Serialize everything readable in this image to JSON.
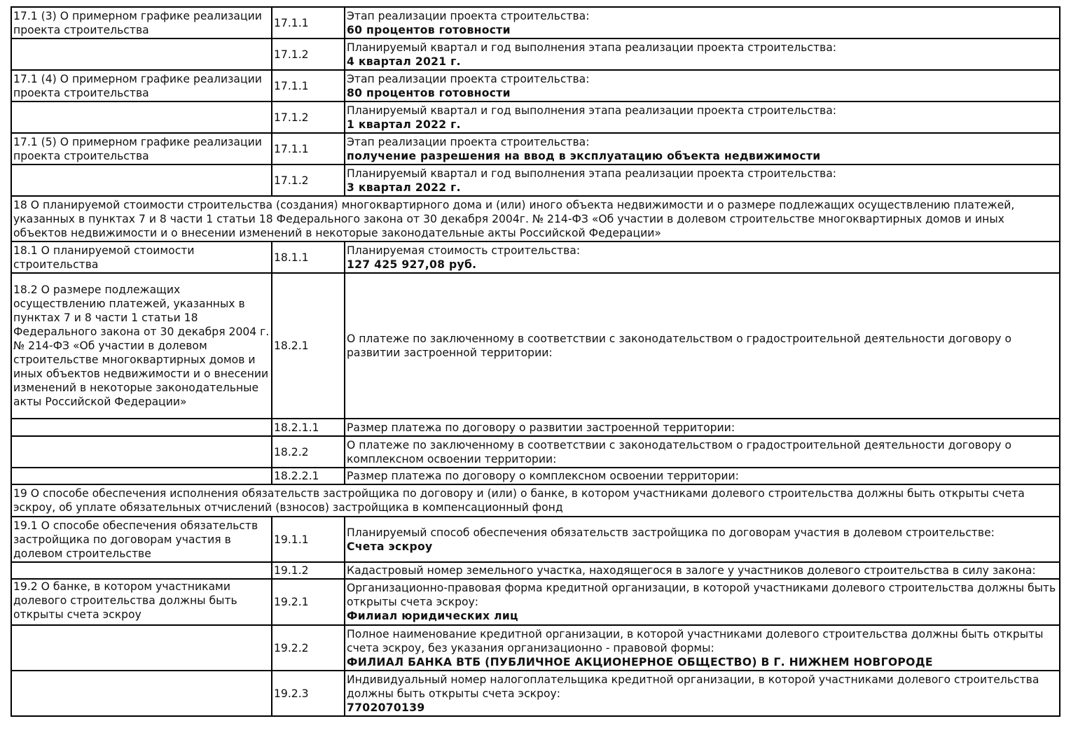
{
  "rows": [
    {
      "section": "17.1 (3) О примерном графике реализации проекта строительства",
      "code": "17.1.1",
      "label": "Этап реализации проекта строительства:",
      "value": "60 процентов готовности"
    },
    {
      "section": "",
      "code": "17.1.2",
      "label": "Планируемый квартал и год выполнения этапа реализации проекта строительства:",
      "value": "4 квартал 2021 г."
    },
    {
      "section": "17.1 (4) О примерном графике реализации проекта строительства",
      "code": "17.1.1",
      "label": "Этап реализации проекта строительства:",
      "value": "80 процентов готовности"
    },
    {
      "section": "",
      "code": "17.1.2",
      "label": "Планируемый квартал и год выполнения этапа реализации проекта строительства:",
      "value": "1 квартал 2022 г."
    },
    {
      "section": "17.1 (5) О примерном графике реализации проекта строительства",
      "code": "17.1.1",
      "label": "Этап реализации проекта строительства:",
      "value": "получение разрешения на ввод в эксплуатацию объекта недвижимости"
    },
    {
      "section": "",
      "code": "17.1.2",
      "label": "Планируемый квартал и год выполнения этапа реализации проекта строительства:",
      "value": "3 квартал 2022 г."
    },
    {
      "heading": "18 О планируемой стоимости строительства (создания) многоквартирного дома и (или) иного объекта недвижимости и о размере подлежащих осуществлению платежей, указанных в пунктах 7 и 8 части 1 статьи 18 Федерального закона от 30 декабря 2004г. № 214-ФЗ «Об участии в долевом строительстве многоквартирных домов и иных объектов недвижимости и о внесении изменений в некоторые законодательные акты Российской Федерации»"
    },
    {
      "section": "18.1 О планируемой стоимости строительства",
      "code": "18.1.1",
      "label": "Планируемая стоимость строительства:",
      "value": "127 425 927,08 руб."
    },
    {
      "section": "18.2 О размере подлежащих осуществлению платежей, указанных в пунктах 7 и 8 части 1 статьи 18 Федерального закона от 30 декабря 2004 г. № 214-ФЗ «Об участии в долевом строительстве многоквартирных домов и иных объектов недвижимости и о внесении изменений в некоторые законодательные акты Российской Федерации»",
      "code": "18.2.1",
      "label": "О платеже по заключенному в соответствии с законодательством о градостроительной деятельности договору о развитии застроенной территории:",
      "value": ""
    },
    {
      "section": "",
      "code": "18.2.1.1",
      "label": "Размер платежа по договору о развитии застроенной территории:",
      "value": ""
    },
    {
      "section": "",
      "code": "18.2.2",
      "label": "О платеже по заключенному в соответствии с законодательством о градостроительной деятельности договору о комплексном освоении территории:",
      "value": ""
    },
    {
      "section": "",
      "code": "18.2.2.1",
      "label": "Размер платежа по договору о комплексном освоении территории:",
      "value": ""
    },
    {
      "heading": "19 О способе обеспечения исполнения обязательств застройщика по договору и (или) о банке, в котором участниками долевого строительства должны быть открыты счета эскроу, об уплате обязательных отчислений (взносов) застройщика в компенсационный фонд"
    },
    {
      "section": "19.1 О способе обеспечения обязательств застройщика по договорам участия в долевом строительстве",
      "code": "19.1.1",
      "label": "Планируемый способ обеспечения обязательств застройщика по договорам участия в долевом строительстве:",
      "value": "Счета эскроу"
    },
    {
      "section": "",
      "code": "19.1.2",
      "label": "Кадастровый номер земельного участка, находящегося в залоге у участников долевого строительства в силу закона:",
      "value": ""
    },
    {
      "section": "19.2 О банке, в котором участниками долевого строительства должны быть открыты счета эскроу",
      "code": "19.2.1",
      "label": "Организационно-правовая форма кредитной организации, в которой участниками долевого строительства должны быть открыты счета эскроу:",
      "value": "Филиал юридических лиц"
    },
    {
      "section": "",
      "code": "19.2.2",
      "label": "Полное наименование кредитной организации, в которой участниками долевого строительства должны быть открыты счета эскроу, без указания организационно - правовой формы:",
      "value": "ФИЛИАЛ БАНКА ВТБ (ПУБЛИЧНОЕ АКЦИОНЕРНОЕ ОБЩЕСТВО) В Г. НИЖНЕМ НОВГОРОДЕ"
    },
    {
      "section": "",
      "code": "19.2.3",
      "label": "Индивидуальный номер налогоплательщика кредитной организации, в которой участниками долевого строительства должны быть открыты счета эскроу:",
      "value": "7702070139"
    }
  ]
}
